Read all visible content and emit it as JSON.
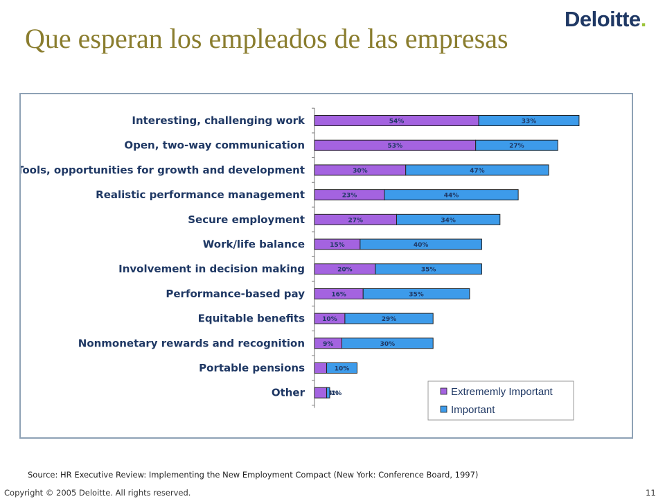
{
  "slide": {
    "title": "Que esperan los empleados de las empresas",
    "logo_text": "Deloitte",
    "logo_dot": ".",
    "source": "Source: HR Executive Review: Implementing the New Employment Compact (New York: Conference Board, 1997)",
    "copyright": "Copyright © 2005 Deloitte. All rights reserved.",
    "page_number": "11"
  },
  "colors": {
    "title": "#8a7d2e",
    "brand": "#1f3864",
    "logo_dot": "#9cc43a",
    "extremely_important": "#a463e0",
    "important": "#3d9bea"
  },
  "chart_data": {
    "type": "bar",
    "orientation": "horizontal",
    "stacked": true,
    "categories": [
      "Interesting, challenging work",
      "Open, two-way communication",
      "Tools, opportunities for growth and development",
      "Realistic performance management",
      "Secure employment",
      "Work/life balance",
      "Involvement in decision making",
      "Performance-based pay",
      "Equitable benefits",
      "Nonmonetary rewards and recognition",
      "Portable pensions",
      "Other"
    ],
    "series": [
      {
        "name": "Extrememly Important",
        "color": "#a463e0",
        "values": [
          54,
          53,
          30,
          23,
          27,
          15,
          20,
          16,
          10,
          9,
          4,
          4
        ]
      },
      {
        "name": "Important",
        "color": "#3d9bea",
        "values": [
          33,
          27,
          47,
          44,
          34,
          40,
          35,
          35,
          29,
          30,
          10,
          1
        ]
      }
    ],
    "value_suffix": "%",
    "legend_position": "bottom-right",
    "grid": false
  }
}
